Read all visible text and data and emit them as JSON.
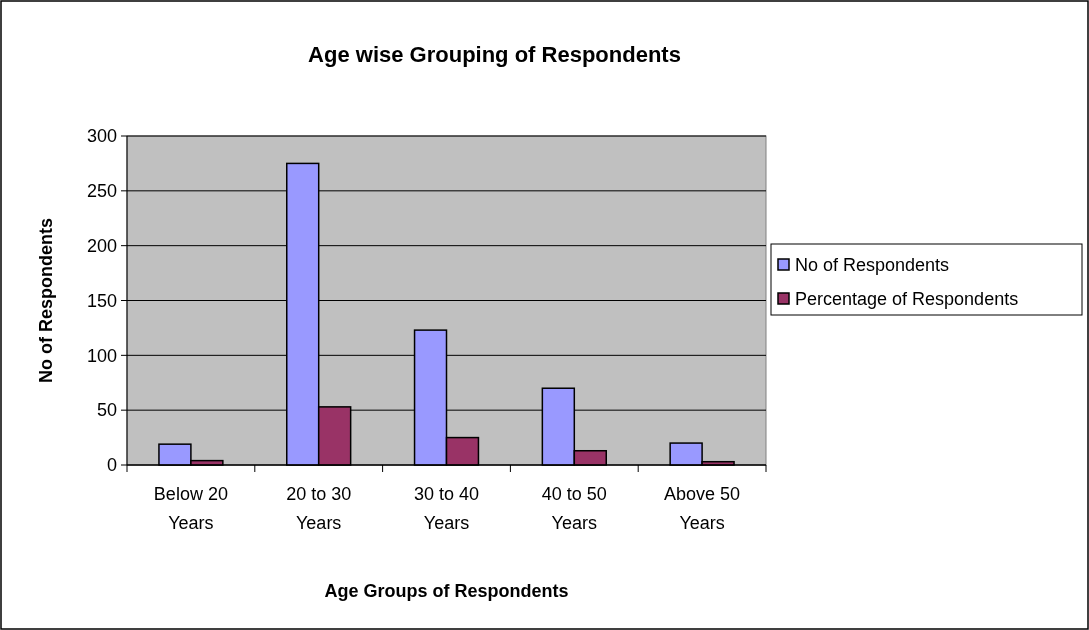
{
  "chart_data": {
    "type": "bar",
    "title": "Age wise Grouping of Respondents",
    "xlabel": "Age Groups of Respondents",
    "ylabel": "No of Respondents",
    "categories": [
      "Below 20 Years",
      "20 to 30 Years",
      "30 to 40 Years",
      "40 to 50 Years",
      "Above 50 Years"
    ],
    "series": [
      {
        "name": "No of Respondents",
        "color": "#9999ff",
        "values": [
          19,
          275,
          123,
          70,
          20
        ]
      },
      {
        "name": "Percentage of Respondents",
        "color": "#993366",
        "values": [
          4,
          53,
          25,
          13,
          3
        ]
      }
    ],
    "ylim": [
      0,
      300
    ],
    "yticks": [
      0,
      50,
      100,
      150,
      200,
      250,
      300
    ],
    "grid": "y",
    "legend": "right"
  }
}
